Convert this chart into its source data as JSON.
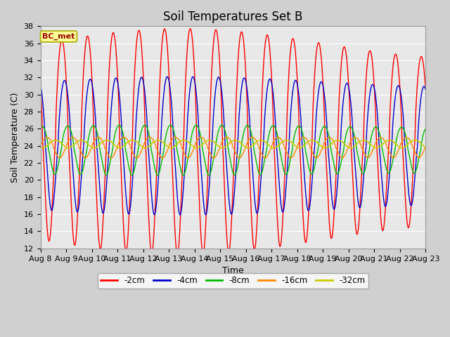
{
  "title": "Soil Temperatures Set B",
  "xlabel": "Time",
  "ylabel": "Soil Temperature (C)",
  "ylim": [
    12,
    38
  ],
  "yticks": [
    12,
    14,
    16,
    18,
    20,
    22,
    24,
    26,
    28,
    30,
    32,
    34,
    36,
    38
  ],
  "label_text": "BC_met",
  "label_bg": "#FFFF99",
  "label_border": "#AAAA00",
  "label_text_color": "#990000",
  "plot_bg": "#E8E8E8",
  "fig_bg": "#D0D0D0",
  "legend_labels": [
    "-2cm",
    "-4cm",
    "-8cm",
    "-16cm",
    "-32cm"
  ],
  "legend_colors": [
    "#FF0000",
    "#0000CC",
    "#00BB00",
    "#FF8800",
    "#CCCC00"
  ],
  "x_tick_labels": [
    "Aug 8",
    "Aug 9",
    "Aug 10",
    "Aug 11",
    "Aug 12",
    "Aug 13",
    "Aug 14",
    "Aug 15",
    "Aug 16",
    "Aug 17",
    "Aug 18",
    "Aug 19",
    "Aug 20",
    "Aug 21",
    "Aug 22",
    "Aug 23"
  ],
  "grid_color": "#FFFFFF",
  "title_fontsize": 12,
  "axis_label_fontsize": 9,
  "tick_fontsize": 8
}
